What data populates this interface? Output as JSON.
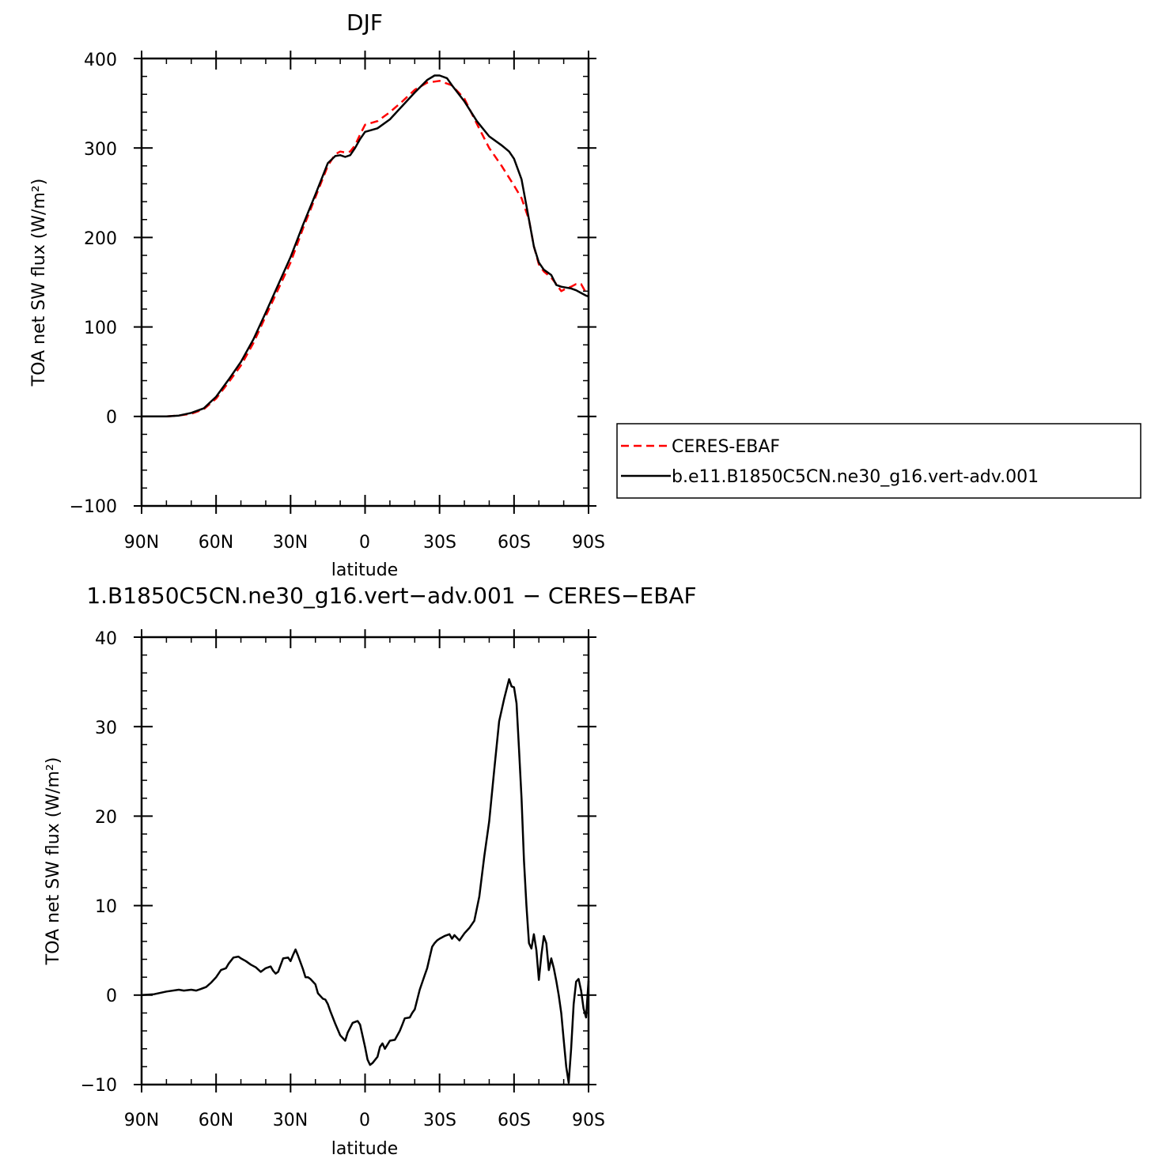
{
  "chart_data": [
    {
      "type": "line",
      "title": "DJF",
      "xlabel": "latitude",
      "ylabel": "TOA net SW flux (W/m²)",
      "ylim": [
        -100,
        400
      ],
      "xlim": [
        90,
        -90
      ],
      "x_tick_values": [
        90,
        60,
        30,
        0,
        -30,
        -60,
        -90
      ],
      "x_tick_labels": [
        "90N",
        "60N",
        "30N",
        "0",
        "30S",
        "60S",
        "90S"
      ],
      "y_tick_values": [
        -100,
        0,
        100,
        200,
        300,
        400
      ],
      "y_tick_labels": [
        "−100",
        "0",
        "100",
        "200",
        "300",
        "400"
      ],
      "legend": {
        "placement": "right",
        "entries": [
          "CERES-EBAF",
          "b.e11.B1850C5CN.ne30_g16.vert-adv.001"
        ]
      },
      "series": [
        {
          "name": "CERES-EBAF",
          "color": "#ff0000",
          "style": "dashed",
          "x": [
            90,
            85,
            80,
            75,
            70,
            65,
            60,
            55,
            50,
            45,
            40,
            35,
            30,
            25,
            20,
            15,
            12,
            10,
            8,
            6,
            4,
            2,
            0,
            -5,
            -10,
            -15,
            -20,
            -25,
            -30,
            -35,
            -40,
            -45,
            -50,
            -55,
            -60,
            -63,
            -66,
            -68,
            -70,
            -72,
            -75,
            -77,
            -79,
            -81,
            -83,
            -85,
            -87,
            -89,
            -90
          ],
          "values": [
            0,
            0,
            0,
            1,
            3,
            8,
            20,
            38,
            57,
            82,
            112,
            142,
            172,
            210,
            245,
            280,
            293,
            296,
            295,
            296,
            303,
            315,
            326,
            330,
            340,
            352,
            365,
            373,
            375,
            370,
            355,
            327,
            300,
            280,
            258,
            244,
            220,
            190,
            170,
            162,
            155,
            148,
            140,
            143,
            145,
            148,
            148,
            138,
            135
          ]
        },
        {
          "name": "b.e11.B1850C5CN.ne30_g16.vert-adv.001",
          "color": "#000000",
          "style": "solid",
          "x": [
            90,
            85,
            80,
            75,
            70,
            65,
            60,
            55,
            50,
            45,
            40,
            35,
            30,
            25,
            20,
            15,
            12,
            10,
            8,
            6,
            4,
            2,
            0,
            -5,
            -10,
            -15,
            -20,
            -25,
            -28,
            -30,
            -33,
            -35,
            -40,
            -45,
            -50,
            -55,
            -58,
            -60,
            -63,
            -66,
            -68,
            -70,
            -72,
            -75,
            -77,
            -79,
            -81,
            -83,
            -85,
            -87,
            -89,
            -90
          ],
          "values": [
            0,
            0,
            0,
            1,
            4,
            9,
            22,
            41,
            61,
            86,
            116,
            147,
            178,
            214,
            248,
            283,
            291,
            292,
            290,
            292,
            300,
            310,
            318,
            322,
            332,
            347,
            362,
            376,
            381,
            381,
            378,
            370,
            352,
            330,
            313,
            303,
            296,
            288,
            265,
            220,
            190,
            172,
            164,
            158,
            147,
            145,
            144,
            143,
            141,
            138,
            135,
            134
          ]
        }
      ]
    },
    {
      "type": "line",
      "title": "1.B1850C5CN.ne30_g16.vert−adv.001 − CERES−EBAF",
      "xlabel": "latitude",
      "ylabel": "TOA net SW flux (W/m²)",
      "ylim": [
        -10,
        40
      ],
      "xlim": [
        90,
        -90
      ],
      "x_tick_values": [
        90,
        60,
        30,
        0,
        -30,
        -60,
        -90
      ],
      "x_tick_labels": [
        "90N",
        "60N",
        "30N",
        "0",
        "30S",
        "60S",
        "90S"
      ],
      "y_tick_values": [
        -10,
        0,
        10,
        20,
        30,
        40
      ],
      "y_tick_labels": [
        "−10",
        "0",
        "10",
        "20",
        "30",
        "40"
      ],
      "series": [
        {
          "color": "#000000",
          "style": "solid",
          "x": [
            90,
            85,
            80,
            75,
            73,
            70,
            68,
            66,
            64,
            62,
            60,
            58,
            56,
            55,
            53,
            51,
            50,
            48,
            46,
            44,
            42,
            40,
            38,
            37,
            36,
            35,
            33,
            31,
            30,
            29,
            28,
            27,
            25,
            24,
            23,
            22,
            20,
            19,
            17,
            16,
            15,
            14,
            12,
            10,
            8,
            7,
            5,
            3,
            2,
            0,
            -1,
            -2,
            -3,
            -5,
            -6,
            -7,
            -8,
            -10,
            -12,
            -14,
            -15,
            -16,
            -18,
            -19,
            -20,
            -22,
            -24,
            -25,
            -26,
            -27,
            -28,
            -29,
            -30,
            -32,
            -34,
            -35,
            -36,
            -38,
            -40,
            -42,
            -44,
            -46,
            -48,
            -50,
            -52,
            -54,
            -56,
            -58,
            -59,
            -60,
            -61,
            -62,
            -63,
            -64,
            -65,
            -66,
            -67,
            -68,
            -69,
            -70,
            -71,
            -72,
            -73,
            -74,
            -75,
            -76,
            -77,
            -78,
            -79,
            -80,
            -81,
            -82,
            -83,
            -84,
            -85,
            -86,
            -87,
            -88,
            -89,
            -90
          ],
          "values": [
            0,
            0.1,
            0.4,
            0.6,
            0.5,
            0.6,
            0.5,
            0.7,
            0.9,
            1.4,
            2.0,
            2.8,
            3.0,
            3.5,
            4.2,
            4.3,
            4.1,
            3.8,
            3.4,
            3.1,
            2.6,
            3.0,
            3.2,
            2.7,
            2.4,
            2.6,
            4.1,
            4.2,
            3.8,
            4.5,
            5.1,
            4.4,
            2.9,
            2.0,
            2.0,
            1.8,
            1.2,
            0.2,
            -0.4,
            -0.5,
            -1.0,
            -1.8,
            -3.2,
            -4.5,
            -5.1,
            -4.2,
            -3.1,
            -2.9,
            -3.3,
            -5.8,
            -7.2,
            -7.8,
            -7.6,
            -6.9,
            -5.8,
            -5.4,
            -6.0,
            -5.1,
            -5.0,
            -4.0,
            -3.3,
            -2.6,
            -2.5,
            -2.0,
            -1.6,
            0.6,
            2.2,
            3.0,
            4.2,
            5.4,
            5.8,
            6.1,
            6.3,
            6.6,
            6.8,
            6.3,
            6.7,
            6.1,
            6.9,
            7.5,
            8.3,
            11.0,
            15.5,
            19.4,
            25.1,
            30.6,
            33.1,
            35.3,
            34.5,
            34.4,
            32.6,
            27.5,
            22.0,
            15.0,
            10.0,
            5.8,
            5.2,
            6.8,
            5.0,
            1.7,
            4.5,
            6.6,
            5.8,
            2.8,
            4.1,
            3.0,
            1.6,
            0.0,
            -2.0,
            -5.0,
            -8.0,
            -9.8,
            -6.0,
            -1.0,
            1.5,
            1.8,
            0.5,
            -1.5,
            -2.5,
            1.6
          ]
        }
      ]
    }
  ]
}
